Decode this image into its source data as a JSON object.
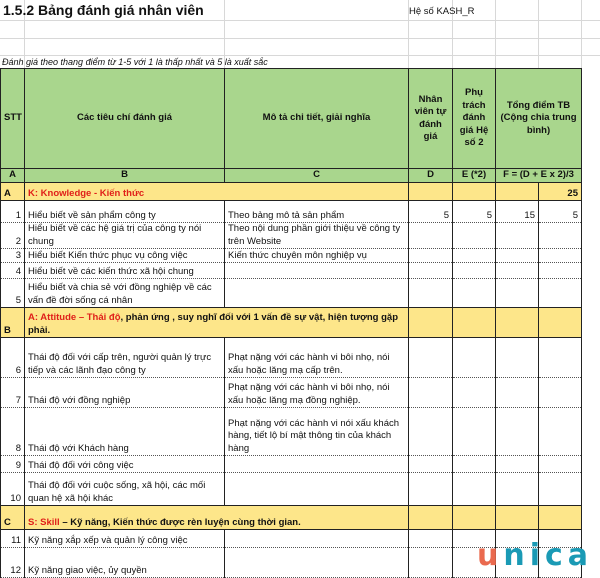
{
  "title": "1.5.2 Bảng đánh giá nhân viên",
  "kash_label": "Hệ số KASH_R",
  "note": "Đánh giá theo thang điểm từ 1-5 với 1 là thấp nhất và 5 là xuất sắc",
  "headers": [
    "STT",
    "Các tiêu chí đánh giá",
    "Mô tả chi tiết, giải nghĩa",
    "Nhân viên tự đánh giá",
    "Phụ trách đánh giá Hệ số 2",
    "Tổng điểm TB (Cộng chia trung bình)"
  ],
  "letters": [
    "A",
    "B",
    "C",
    "D",
    "E (*2)",
    "F = (D + E x 2)/3"
  ],
  "sections": [
    {
      "code": "A",
      "red": "K: Knowledge - Kiến thức",
      "rest": "",
      "total": "25"
    },
    {
      "code": "B",
      "red": "A: Attitude – Thái độ",
      "rest": ", phản ứng , suy nghĩ đối với 1 vấn đề sự vật, hiện tượng gặp phải."
    },
    {
      "code": "C",
      "red": "S: Skill",
      "rest": " – Kỹ năng, Kiến thức được rèn luyện cùng thời gian."
    }
  ],
  "rows": [
    {
      "stt": "1",
      "criteria": "Hiểu biết về sản phẩm công ty",
      "desc": "Theo bảng mô tả sản phẩm",
      "d": "5",
      "e": "5",
      "f": "15",
      "g": "5"
    },
    {
      "stt": "2",
      "criteria": "Hiểu biết về các hệ giá trị của công ty nói chung",
      "desc": "Theo nội dung phần giới thiệu về công ty trên Website"
    },
    {
      "stt": "3",
      "criteria": "Hiểu biết Kiến thức phục vụ công việc",
      "desc": "Kiến thức chuyên môn nghiệp vụ"
    },
    {
      "stt": "4",
      "criteria": "Hiểu biết về các kiến thức xã hội chung",
      "desc": ""
    },
    {
      "stt": "5",
      "criteria": "Hiểu biết và chia sẻ với đồng nghiệp về các vấn đề đời sống cá nhân",
      "desc": ""
    },
    {
      "stt": "6",
      "criteria": "Thái độ đối với cấp trên, người quản lý trực tiếp và các lãnh đạo công ty",
      "desc": "Phạt nặng với các hành vi bôi nhọ, nói xấu hoặc lăng mạ cấp trên."
    },
    {
      "stt": "7",
      "criteria": "Thái độ với đồng nghiệp",
      "desc": "Phạt nặng với các hành vi bôi nhọ, nói xấu hoặc lăng mạ đồng nghiệp."
    },
    {
      "stt": "8",
      "criteria": "Thái độ với Khách hàng",
      "desc": "Phạt nặng với các hành vi nói xấu khách hàng, tiết lộ bí mật thông tin của khách hàng"
    },
    {
      "stt": "9",
      "criteria": "Thái độ đối với công việc",
      "desc": ""
    },
    {
      "stt": "10",
      "criteria": "Thái độ đối với cuộc sống, xã hội, các mối quan hệ xã hội khác",
      "desc": ""
    },
    {
      "stt": "11",
      "criteria": "Kỹ năng xắp xếp và quản lý công việc",
      "desc": ""
    },
    {
      "stt": "12",
      "criteria": "Kỹ năng giao việc, ủy quyền",
      "desc": ""
    }
  ],
  "logo": {
    "u": "u",
    "rest": "nica",
    "colors": {
      "u": "#ea6a4f",
      "rest": "#1a9ab5"
    }
  },
  "colors": {
    "header_bg": "#a9d68d",
    "section_bg": "#fde68a",
    "section_red": "#e0201a"
  }
}
